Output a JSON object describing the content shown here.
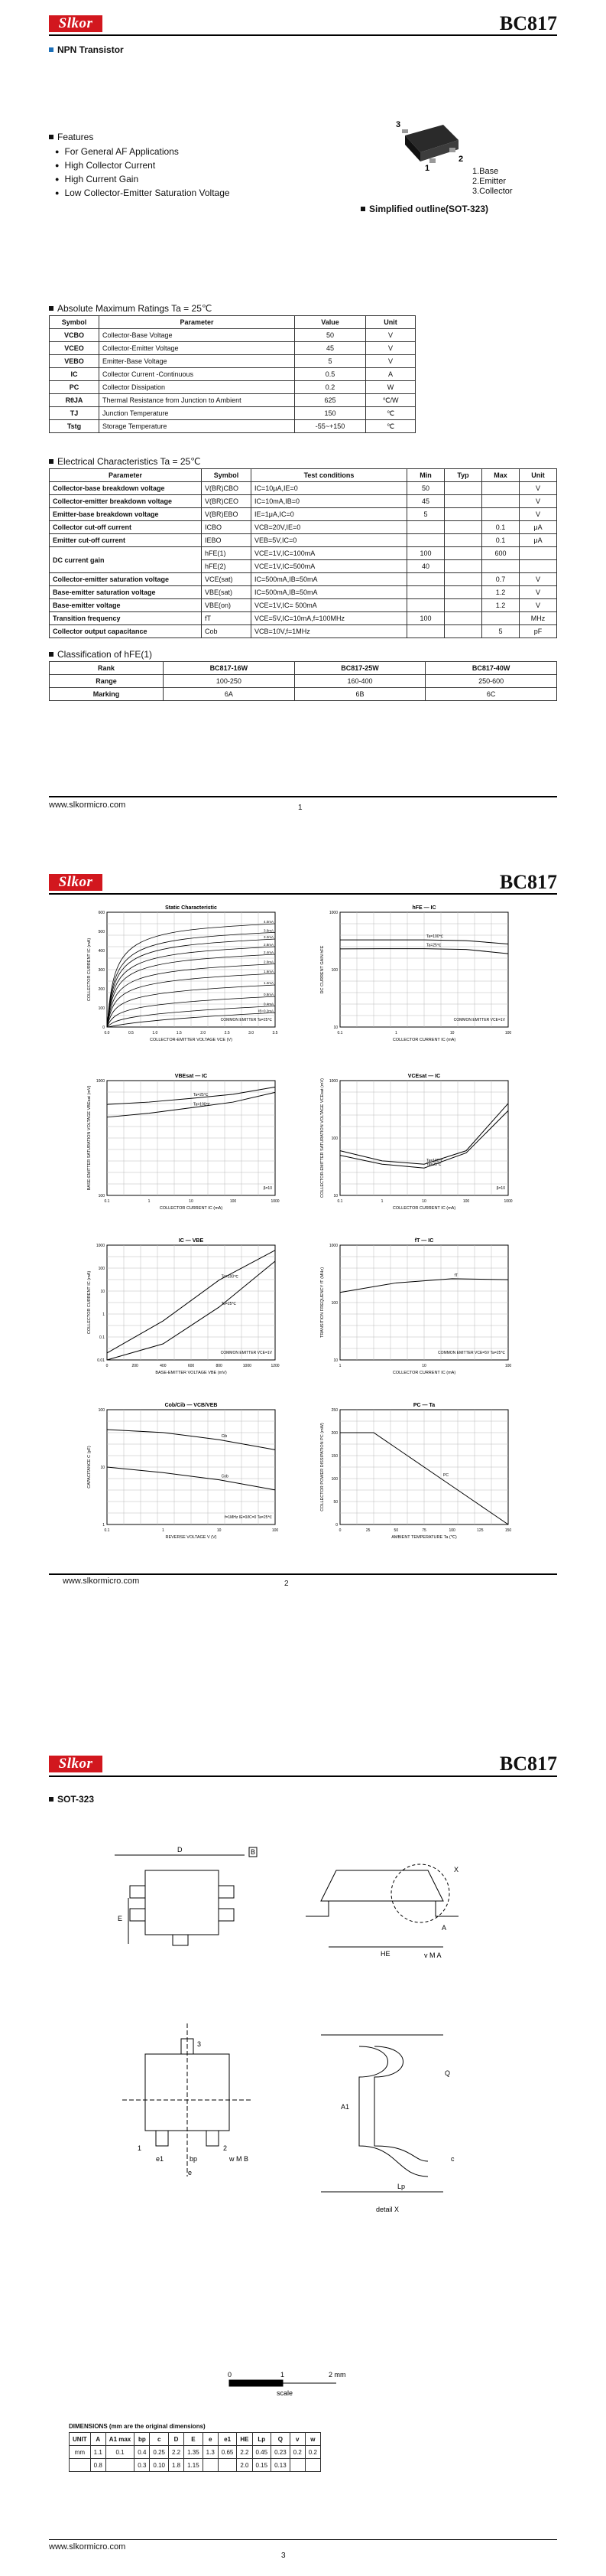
{
  "brand": "Slkor",
  "part": "BC817",
  "page1": {
    "subtitle": "NPN Transistor",
    "features_title": "Features",
    "features": [
      "For General AF Applications",
      "High Collector Current",
      "High Current Gain",
      "Low Collector-Emitter Saturation Voltage"
    ],
    "pins": [
      "1.Base",
      "2.Emitter",
      "3.Collector"
    ],
    "pin_numbers": [
      "3",
      "1",
      "2"
    ],
    "outline_caption": "Simplified outline(SOT-323)",
    "amr_title": "Absolute Maximum Ratings Ta = 25℃",
    "amr_headers": [
      "Symbol",
      "Parameter",
      "Value",
      "Unit"
    ],
    "amr_rows": [
      {
        "sym": "VCBO",
        "param": "Collector-Base Voltage",
        "val": "50",
        "unit": "V"
      },
      {
        "sym": "VCEO",
        "param": "Collector-Emitter Voltage",
        "val": "45",
        "unit": "V"
      },
      {
        "sym": "VEBO",
        "param": "Emitter-Base Voltage",
        "val": "5",
        "unit": "V"
      },
      {
        "sym": "IC",
        "param": "Collector Current -Continuous",
        "val": "0.5",
        "unit": "A"
      },
      {
        "sym": "PC",
        "param": "Collector Dissipation",
        "val": "0.2",
        "unit": "W"
      },
      {
        "sym": "RθJA",
        "param": "Thermal Resistance from Junction to Ambient",
        "val": "625",
        "unit": "℃/W"
      },
      {
        "sym": "TJ",
        "param": "Junction Temperature",
        "val": "150",
        "unit": "℃"
      },
      {
        "sym": "Tstg",
        "param": "Storage Temperature",
        "val": "-55~+150",
        "unit": "℃"
      }
    ],
    "ec_title": "Electrical Characteristics Ta = 25℃",
    "ec_headers": [
      "Parameter",
      "Symbol",
      "Test conditions",
      "Min",
      "Typ",
      "Max",
      "Unit"
    ],
    "ec_rows": [
      {
        "param": "Collector-base breakdown voltage",
        "sym": "V(BR)CBO",
        "cond": "IC=10μA,IE=0",
        "min": "50",
        "typ": "",
        "max": "",
        "unit": "V"
      },
      {
        "param": "Collector-emitter breakdown voltage",
        "sym": "V(BR)CEO",
        "cond": "IC=10mA,IB=0",
        "min": "45",
        "typ": "",
        "max": "",
        "unit": "V"
      },
      {
        "param": "Emitter-base breakdown voltage",
        "sym": "V(BR)EBO",
        "cond": "IE=1μA,IC=0",
        "min": "5",
        "typ": "",
        "max": "",
        "unit": "V"
      },
      {
        "param": "Collector cut-off current",
        "sym": "ICBO",
        "cond": "VCB=20V,IE=0",
        "min": "",
        "typ": "",
        "max": "0.1",
        "unit": "μA"
      },
      {
        "param": "Emitter cut-off current",
        "sym": "IEBO",
        "cond": "VEB=5V,IC=0",
        "min": "",
        "typ": "",
        "max": "0.1",
        "unit": "μA"
      },
      {
        "param": "DC current gain",
        "sym": "hFE(1)",
        "cond": "VCE=1V,IC=100mA",
        "min": "100",
        "typ": "",
        "max": "600",
        "unit": ""
      },
      {
        "param": "",
        "sym": "hFE(2)",
        "cond": "VCE=1V,IC=500mA",
        "min": "40",
        "typ": "",
        "max": "",
        "unit": ""
      },
      {
        "param": "Collector-emitter saturation voltage",
        "sym": "VCE(sat)",
        "cond": "IC=500mA,IB=50mA",
        "min": "",
        "typ": "",
        "max": "0.7",
        "unit": "V"
      },
      {
        "param": "Base-emitter saturation voltage",
        "sym": "VBE(sat)",
        "cond": "IC=500mA,IB=50mA",
        "min": "",
        "typ": "",
        "max": "1.2",
        "unit": "V"
      },
      {
        "param": "Base-emitter voltage",
        "sym": "VBE(on)",
        "cond": "VCE=1V,IC= 500mA",
        "min": "",
        "typ": "",
        "max": "1.2",
        "unit": "V"
      },
      {
        "param": "Transition frequency",
        "sym": "fT",
        "cond": "VCE=5V,IC=10mA,f=100MHz",
        "min": "100",
        "typ": "",
        "max": "",
        "unit": "MHz"
      },
      {
        "param": "Collector output capacitance",
        "sym": "Cob",
        "cond": "VCB=10V,f=1MHz",
        "min": "",
        "typ": "",
        "max": "5",
        "unit": "pF"
      }
    ],
    "class_title": "Classification of hFE(1)",
    "class_headers": [
      "Rank",
      "BC817-16W",
      "BC817-25W",
      "BC817-40W"
    ],
    "class_rows": [
      {
        "label": "Range",
        "a": "100-250",
        "b": "160-400",
        "c": "250-600"
      },
      {
        "label": "Marking",
        "a": "6A",
        "b": "6B",
        "c": "6C"
      }
    ],
    "url": "www.slkormicro.com",
    "page_num": "1"
  },
  "page2": {
    "url": "www.slkormicro.com",
    "page_num": "2",
    "charts": [
      {
        "type": "line",
        "title": "Static Characteristic",
        "xlabel": "COLLECTOR-EMITTER VOLTAGE  VCE (V)",
        "ylabel": "COLLECTOR CURRENT  IC (mA)",
        "note": "COMMON EMITTER  Ta=25℃",
        "x_ticks": [
          "0.0",
          "0.5",
          "1.0",
          "1.5",
          "2.0",
          "2.5",
          "3.0",
          "3.5"
        ],
        "y_ticks": [
          "0",
          "100",
          "200",
          "300",
          "400",
          "500",
          "600"
        ],
        "series_labels": [
          "4.0mA",
          "3.6mA",
          "3.2mA",
          "2.8mA",
          "2.4mA",
          "2.0mA",
          "1.6mA",
          "1.2mA",
          "0.8mA",
          "0.4mA",
          "IB=0.2mA"
        ],
        "series_values": [
          500,
          455,
          420,
          380,
          340,
          290,
          240,
          180,
          120,
          70,
          35
        ]
      },
      {
        "type": "line",
        "title": "hFE — IC",
        "xlabel": "COLLECTOR CURRENT  IC (mA)",
        "ylabel": "DC CURRENT GAIN  hFE",
        "note": "COMMON EMITTER  VCE=1V",
        "x_ticks": [
          "0.1",
          "1",
          "10",
          "100"
        ],
        "y_ticks": [
          "10",
          "100",
          "1000"
        ],
        "series": [
          {
            "name": "Ta=100℃",
            "values": [
              330,
              330,
              330,
              320,
              280
            ]
          },
          {
            "name": "Ta=25℃",
            "values": [
              230,
              232,
              232,
              225,
              190
            ]
          }
        ]
      },
      {
        "type": "line",
        "title": "VBEsat — IC",
        "xlabel": "COLLECTOR CURRENT  IC (mA)",
        "ylabel": "BASE-EMITTER SATURATION VOLTAGE  VBEsat (mV)",
        "note": "β=10",
        "x_ticks": [
          "0.1",
          "1",
          "10",
          "100",
          "1000"
        ],
        "y_ticks": [
          "100",
          "1000"
        ],
        "series": [
          {
            "name": "Ta=25℃",
            "values": [
              620,
              650,
              700,
              760,
              880
            ]
          },
          {
            "name": "Ta=100℃",
            "values": [
              480,
              520,
              580,
              650,
              790
            ]
          }
        ]
      },
      {
        "type": "line",
        "title": "VCEsat — IC",
        "xlabel": "COLLECTOR CURRENT  IC (mA)",
        "ylabel": "COLLECTOR-EMITTER SATURATION VOLTAGE  VCEsat (mV)",
        "note": "β=10",
        "x_ticks": [
          "0.1",
          "1",
          "10",
          "100",
          "1000"
        ],
        "y_ticks": [
          "10",
          "100",
          "1000"
        ],
        "series": [
          {
            "name": "Ta=100℃",
            "values": [
              60,
              40,
              35,
              60,
              400
            ]
          },
          {
            "name": "Ta=25℃",
            "values": [
              50,
              35,
              30,
              55,
              300
            ]
          }
        ]
      },
      {
        "type": "line",
        "title": "IC — VBE",
        "xlabel": "BASE-EMITTER VOLTAGE  VBE (mV)",
        "ylabel": "COLLECTOR CURRENT  IC (mA)",
        "note": "COMMON EMITTER  VCE=1V",
        "x_ticks": [
          "0",
          "200",
          "400",
          "600",
          "800",
          "1000",
          "1200"
        ],
        "y_ticks": [
          "0.01",
          "0.1",
          "1",
          "10",
          "100",
          "1000"
        ],
        "series": [
          {
            "name": "Ta=100℃",
            "values": [
              0.02,
              0.5,
              30,
              600
            ]
          },
          {
            "name": "Ta=25℃",
            "values": [
              0.01,
              0.05,
              2,
              200
            ]
          }
        ]
      },
      {
        "type": "line",
        "title": "fT — IC",
        "xlabel": "COLLECTOR CURRENT  IC (mA)",
        "ylabel": "TRANSITION FREQUENCY  fT (MHz)",
        "note": "COMMON EMITTER  VCE=5V  Ta=25℃",
        "x_ticks": [
          "1",
          "10",
          "100"
        ],
        "y_ticks": [
          "10",
          "100",
          "1000"
        ],
        "series": [
          {
            "name": "fT",
            "values": [
              150,
              220,
              260,
              250
            ]
          }
        ]
      },
      {
        "type": "line",
        "title": "Cob/Cib — VCB/VEB",
        "xlabel": "REVERSE VOLTAGE  V (V)",
        "ylabel": "CAPACITANCE  C (pF)",
        "note": "f=1MHz  IE=0/IC=0  Ta=25℃",
        "x_ticks": [
          "0.1",
          "1",
          "10",
          "100"
        ],
        "y_ticks": [
          "1",
          "10",
          "100"
        ],
        "series": [
          {
            "name": "Cib",
            "values": [
              45,
              40,
              30,
              20
            ]
          },
          {
            "name": "Cob",
            "values": [
              10,
              8,
              6,
              4
            ]
          }
        ]
      },
      {
        "type": "line",
        "title": "PC — Ta",
        "xlabel": "AMBIENT TEMPERATURE  Ta (℃)",
        "ylabel": "COLLECTOR POWER DISSIPATION  PC (mW)",
        "note": "",
        "x_ticks": [
          "0",
          "25",
          "50",
          "75",
          "100",
          "125",
          "150"
        ],
        "y_ticks": [
          "0",
          "50",
          "100",
          "150",
          "200",
          "250"
        ],
        "series": [
          {
            "name": "PC",
            "values": [
              200,
              200,
              150,
              100,
              50,
              0
            ]
          }
        ]
      }
    ]
  },
  "page3": {
    "package": "SOT-323",
    "dims_title": "DIMENSIONS (mm are the original dimensions)",
    "dims_headers": [
      "UNIT",
      "A",
      "A1 max",
      "bp",
      "c",
      "D",
      "E",
      "e",
      "e1",
      "HE",
      "Lp",
      "Q",
      "v",
      "w"
    ],
    "dims_row1": [
      "mm",
      "1.1",
      "0.1",
      "0.4",
      "0.25",
      "2.2",
      "1.35",
      "1.3",
      "0.65",
      "2.2",
      "0.45",
      "0.23",
      "0.2",
      "0.2"
    ],
    "dims_row2": [
      "",
      "0.8",
      "",
      "0.3",
      "0.10",
      "1.8",
      "1.15",
      "",
      "",
      "2.0",
      "0.15",
      "0.13",
      "",
      ""
    ],
    "scale_labels": [
      "0",
      "1",
      "2 mm"
    ],
    "scale_caption": "scale",
    "detail_caption": "detail X",
    "labels": [
      "D",
      "B",
      "E",
      "A",
      "X",
      "HE",
      "v",
      "M",
      "A",
      "3",
      "1",
      "2",
      "e1",
      "bp",
      "w",
      "M",
      "B",
      "e",
      "Q",
      "A1",
      "c",
      "Lp"
    ],
    "url": "www.slkormicro.com",
    "page_num": "3"
  }
}
